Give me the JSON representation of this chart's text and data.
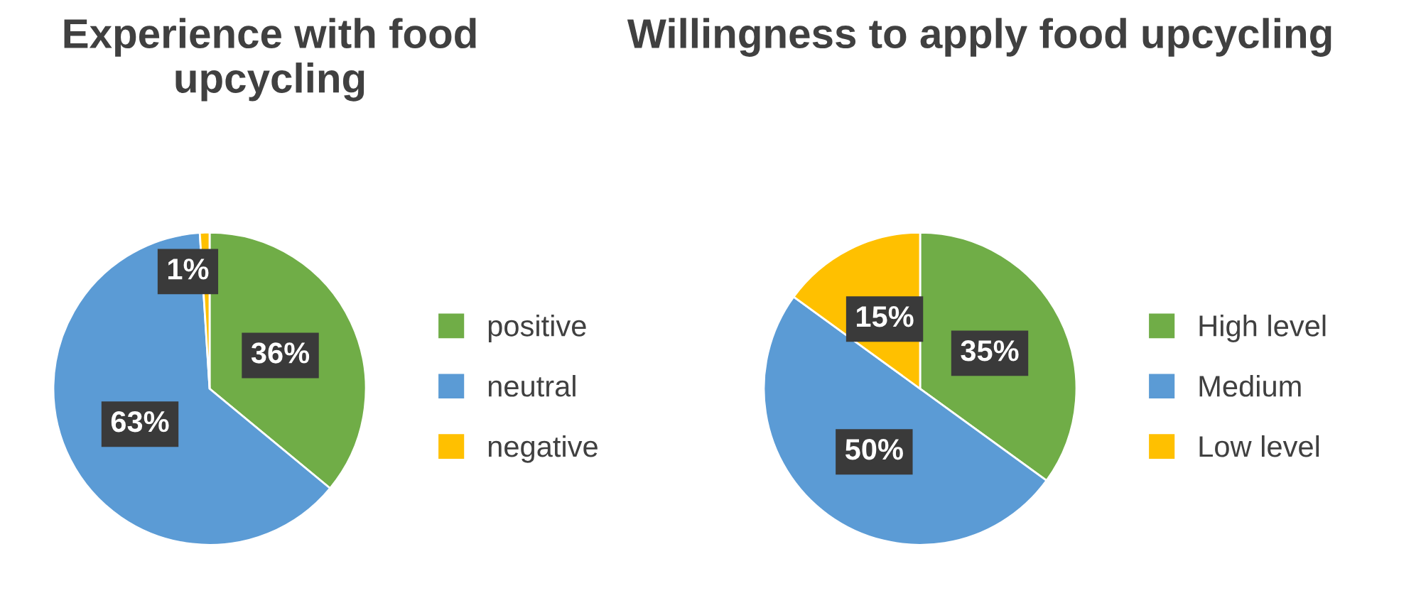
{
  "chart_data": [
    {
      "type": "pie",
      "title": "Experience with food upcycling",
      "categories": [
        "positive",
        "neutral",
        "negative"
      ],
      "values": [
        36,
        63,
        1
      ],
      "colors": [
        "#70ad47",
        "#5b9bd5",
        "#ffc000"
      ],
      "value_labels": [
        "36%",
        "63%",
        "1%"
      ],
      "legend": "right"
    },
    {
      "type": "pie",
      "title": "Willingness to apply food upcycling",
      "categories": [
        "High level",
        "Medium",
        "Low level"
      ],
      "values": [
        35,
        50,
        15
      ],
      "colors": [
        "#70ad47",
        "#5b9bd5",
        "#ffc000"
      ],
      "value_labels": [
        "35%",
        "50%",
        "15%"
      ],
      "legend": "right"
    }
  ]
}
